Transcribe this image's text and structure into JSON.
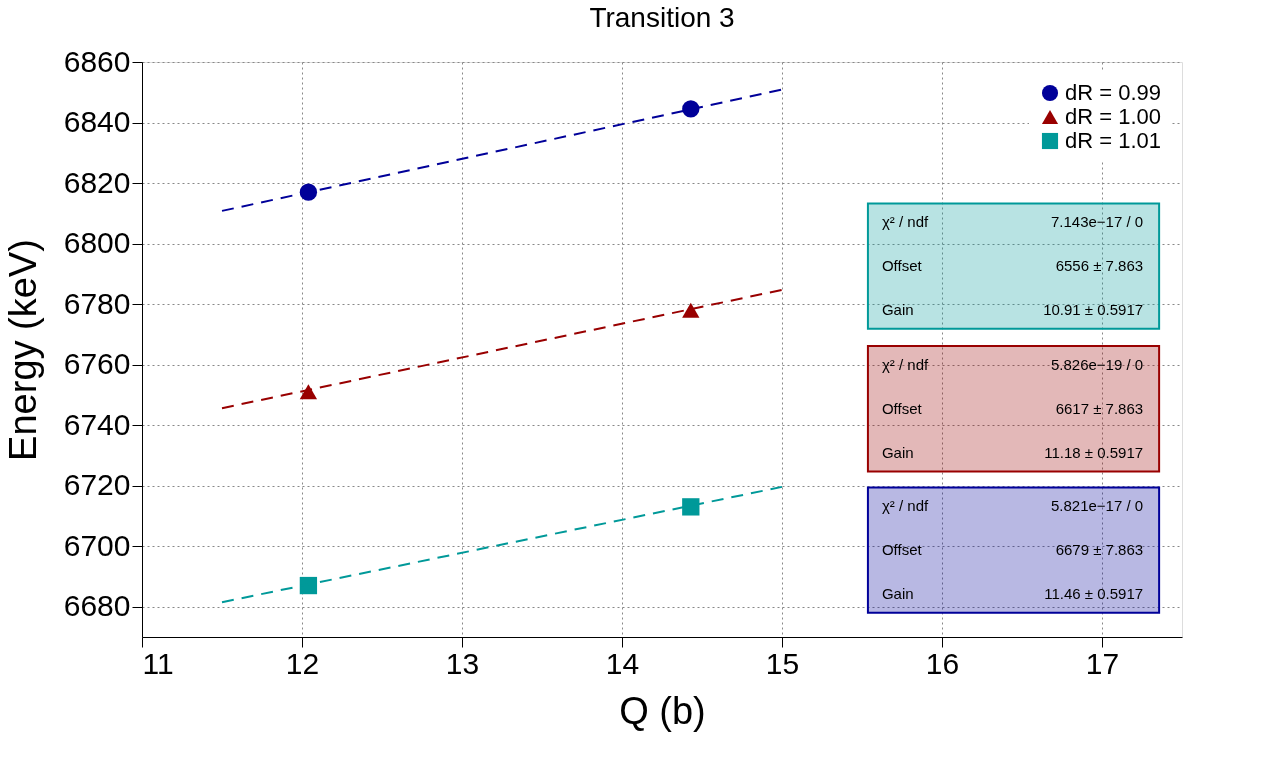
{
  "chart_data": {
    "type": "scatter",
    "title": "Transition 3",
    "xlabel": "Q (b)",
    "ylabel": "Energy (keV)",
    "xlim": [
      11,
      17.5
    ],
    "xticks": [
      11,
      12,
      13,
      14,
      15,
      16,
      17
    ],
    "ylim": [
      6670,
      6860
    ],
    "yticks": [
      6680,
      6700,
      6720,
      6740,
      6760,
      6780,
      6800,
      6820,
      6840,
      6860
    ],
    "grid": true,
    "legend": "top right",
    "series": [
      {
        "name": "dR = 0.99",
        "color": "#000099",
        "marker": "circle",
        "x": [
          12.04,
          14.43
        ],
        "values": [
          6817,
          6844.5
        ]
      },
      {
        "name": "dR = 1.00",
        "color": "#990000",
        "marker": "triangle",
        "x": [
          12.04,
          14.43
        ],
        "values": [
          6751,
          6778
        ]
      },
      {
        "name": "dR = 1.01",
        "color": "#009999",
        "marker": "square",
        "x": [
          12.04,
          14.43
        ],
        "values": [
          6687,
          6713
        ]
      },
      {
        "type": "line",
        "color": "#000099",
        "line_style": "dashed",
        "x": [
          11.5,
          15
        ],
        "values": [
          6810.8,
          6850.9
        ]
      },
      {
        "type": "line",
        "color": "#990000",
        "line_style": "dashed",
        "x": [
          11.5,
          15
        ],
        "values": [
          6745.6,
          6784.7
        ]
      },
      {
        "type": "line",
        "color": "#009999",
        "line_style": "dashed",
        "x": [
          11.5,
          15
        ],
        "values": [
          6681.5,
          6719.6
        ]
      }
    ],
    "annotations": [
      "χ² / ndf",
      "7.143e−17 / 0",
      "Offset",
      "6556 ± 7.863",
      "Gain",
      "10.91 ± 0.5917",
      "χ² / ndf",
      "5.826e−19 / 0",
      "Offset",
      "6617 ± 7.863",
      "Gain",
      "11.18 ± 0.5917",
      "χ² / ndf",
      "5.821e−17 / 0",
      "Offset",
      "6679 ± 7.863",
      "Gain",
      "11.46 ± 0.5917"
    ]
  }
}
